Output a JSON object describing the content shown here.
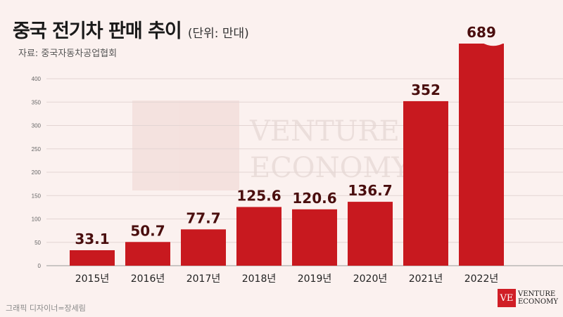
{
  "header": {
    "title": "중국 전기차 판매 추이",
    "unit": "(단위: 만대)",
    "source": "자료: 중국자동차공업협회"
  },
  "footer": {
    "credit": "그래픽 디자이너=장세림"
  },
  "brand": {
    "logo_mark": "VE",
    "logo_line1": "VENTURE",
    "logo_line2": "ECONOMY",
    "watermark_line1": "VENTURE",
    "watermark_line2": "ECONOMY",
    "color": "#d01e26"
  },
  "chart_data": {
    "type": "bar",
    "categories": [
      "2015년",
      "2016년",
      "2017년",
      "2018년",
      "2019년",
      "2020년",
      "2021년",
      "2022년"
    ],
    "values": [
      33.1,
      50.7,
      77.7,
      125.6,
      120.6,
      136.7,
      352,
      689
    ],
    "value_labels": [
      "33.1",
      "50.7",
      "77.7",
      "125.6",
      "120.6",
      "136.7",
      "352",
      "689"
    ],
    "y_ticks": [
      0,
      50,
      100,
      150,
      200,
      250,
      300,
      350,
      400
    ],
    "ylim": [
      0,
      400
    ],
    "axis_break_on": "2022년",
    "bar_color": "#c8191f",
    "grid": true,
    "title": "중국 전기차 판매 추이",
    "xlabel": "",
    "ylabel": ""
  }
}
